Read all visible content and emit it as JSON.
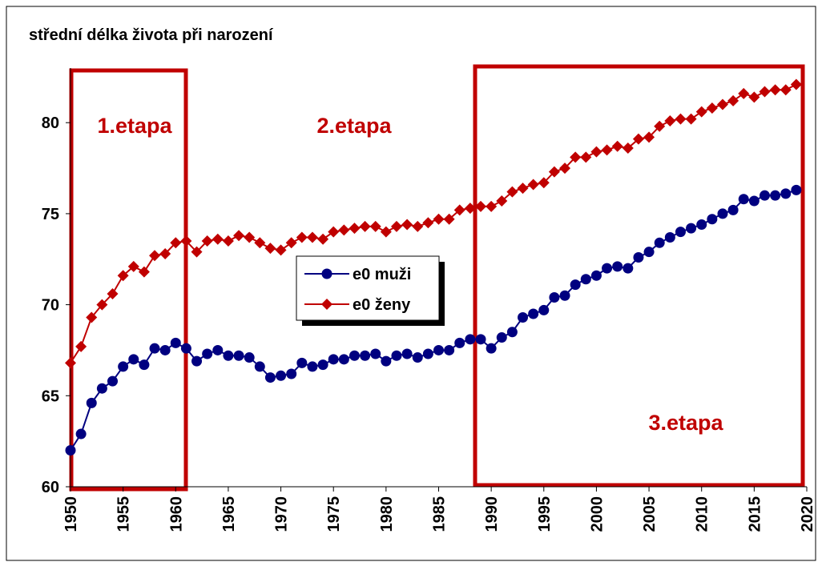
{
  "chart_data": {
    "type": "line",
    "title": "střední délka života při narození",
    "annotations": [
      "1.etapa",
      "2.etapa",
      "3.etapa"
    ],
    "x": [
      1950,
      1951,
      1952,
      1953,
      1954,
      1955,
      1956,
      1957,
      1958,
      1959,
      1960,
      1961,
      1962,
      1963,
      1964,
      1965,
      1966,
      1967,
      1968,
      1969,
      1970,
      1971,
      1972,
      1973,
      1974,
      1975,
      1976,
      1977,
      1978,
      1979,
      1980,
      1981,
      1982,
      1983,
      1984,
      1985,
      1986,
      1987,
      1988,
      1989,
      1990,
      1991,
      1992,
      1993,
      1994,
      1995,
      1996,
      1997,
      1998,
      1999,
      2000,
      2001,
      2002,
      2003,
      2004,
      2005,
      2006,
      2007,
      2008,
      2009,
      2010,
      2011,
      2012,
      2013,
      2014,
      2015,
      2016,
      2017,
      2018,
      2019
    ],
    "series": [
      {
        "name": "e0 muži",
        "color": "#000080",
        "marker": "circle",
        "values": [
          62.0,
          62.9,
          64.6,
          65.4,
          65.8,
          66.6,
          67.0,
          66.7,
          67.6,
          67.5,
          67.9,
          67.6,
          66.9,
          67.3,
          67.5,
          67.2,
          67.2,
          67.1,
          66.6,
          66.0,
          66.1,
          66.2,
          66.8,
          66.6,
          66.7,
          67.0,
          67.0,
          67.2,
          67.2,
          67.3,
          66.9,
          67.2,
          67.3,
          67.1,
          67.3,
          67.5,
          67.5,
          67.9,
          68.1,
          68.1,
          67.6,
          68.2,
          68.5,
          69.3,
          69.5,
          69.7,
          70.4,
          70.5,
          71.1,
          71.4,
          71.6,
          72.0,
          72.1,
          72.0,
          72.6,
          72.9,
          73.4,
          73.7,
          74.0,
          74.2,
          74.4,
          74.7,
          75.0,
          75.2,
          75.8,
          75.7,
          76.0,
          76.0,
          76.1,
          76.3
        ]
      },
      {
        "name": "e0 ženy",
        "color": "#c00000",
        "marker": "diamond",
        "values": [
          66.8,
          67.7,
          69.3,
          70.0,
          70.6,
          71.6,
          72.1,
          71.8,
          72.7,
          72.8,
          73.4,
          73.5,
          72.9,
          73.5,
          73.6,
          73.5,
          73.8,
          73.7,
          73.4,
          73.1,
          73.0,
          73.4,
          73.7,
          73.7,
          73.6,
          74.0,
          74.1,
          74.2,
          74.3,
          74.3,
          74.0,
          74.3,
          74.4,
          74.3,
          74.5,
          74.7,
          74.7,
          75.2,
          75.3,
          75.4,
          75.4,
          75.7,
          76.2,
          76.4,
          76.6,
          76.7,
          77.3,
          77.5,
          78.1,
          78.1,
          78.4,
          78.5,
          78.7,
          78.6,
          79.1,
          79.2,
          79.8,
          80.1,
          80.2,
          80.2,
          80.6,
          80.8,
          81.0,
          81.2,
          81.6,
          81.4,
          81.7,
          81.8,
          81.8,
          82.1
        ]
      }
    ],
    "xlim": [
      1950,
      2020
    ],
    "xticks": [
      1950,
      1955,
      1960,
      1965,
      1970,
      1975,
      1980,
      1985,
      1990,
      1995,
      2000,
      2005,
      2010,
      2015,
      2020
    ],
    "ylim": [
      60,
      83
    ],
    "yticks": [
      60,
      65,
      70,
      75,
      80
    ]
  }
}
